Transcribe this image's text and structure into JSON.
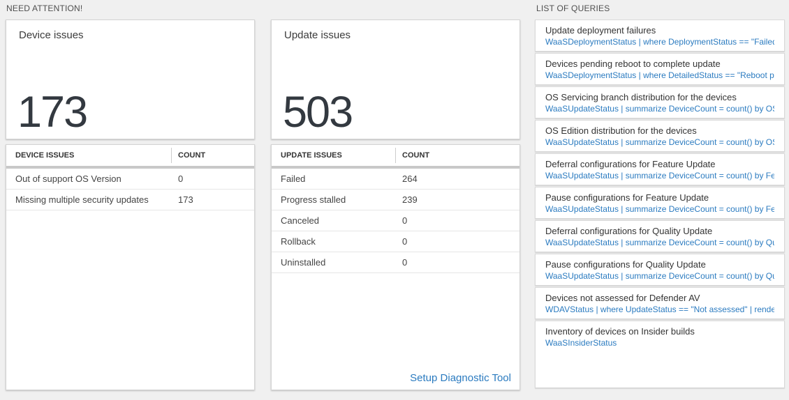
{
  "sections": {
    "need_attention": "NEED ATTENTION!",
    "list_of_queries": "LIST OF QUERIES"
  },
  "colors": {
    "link_blue": "#2b7bc0",
    "big_number": "#333940",
    "page_bg": "#f0f0f0"
  },
  "device_card": {
    "title": "Device issues",
    "big_number": "173",
    "table": {
      "header_label": "DEVICE ISSUES",
      "header_count": "COUNT",
      "rows": [
        {
          "label": "Out of support OS Version",
          "count": "0"
        },
        {
          "label": "Missing multiple security updates",
          "count": "173"
        }
      ]
    }
  },
  "update_card": {
    "title": "Update issues",
    "big_number": "503",
    "table": {
      "header_label": "UPDATE ISSUES",
      "header_count": "COUNT",
      "rows": [
        {
          "label": "Failed",
          "count": "264"
        },
        {
          "label": "Progress stalled",
          "count": "239"
        },
        {
          "label": "Canceled",
          "count": "0"
        },
        {
          "label": "Rollback",
          "count": "0"
        },
        {
          "label": "Uninstalled",
          "count": "0"
        }
      ]
    },
    "link_label": "Setup Diagnostic Tool"
  },
  "queries": [
    {
      "title": "Update deployment failures",
      "query": "WaaSDeploymentStatus | where DeploymentStatus == \"Failed\" |..."
    },
    {
      "title": "Devices pending reboot to complete update",
      "query": "WaaSDeploymentStatus | where DetailedStatus == \"Reboot pend..."
    },
    {
      "title": "OS Servicing branch distribution for the devices",
      "query": "WaaSUpdateStatus | summarize DeviceCount = count() by OSSer..."
    },
    {
      "title": "OS Edition distribution for the devices",
      "query": "WaaSUpdateStatus | summarize DeviceCount = count() by OSEdit..."
    },
    {
      "title": "Deferral configurations for Feature Update",
      "query": "WaaSUpdateStatus | summarize DeviceCount = count() by Featur..."
    },
    {
      "title": "Pause configurations for Feature Update",
      "query": "WaaSUpdateStatus | summarize DeviceCount = count() by Featur..."
    },
    {
      "title": "Deferral configurations for Quality Update",
      "query": "WaaSUpdateStatus | summarize DeviceCount = count() by Qualit..."
    },
    {
      "title": "Pause configurations for Quality Update",
      "query": "WaaSUpdateStatus | summarize DeviceCount = count() by Qualit..."
    },
    {
      "title": "Devices not assessed for Defender AV",
      "query": "WDAVStatus | where UpdateStatus == \"Not assessed\" | render ta..."
    },
    {
      "title": "Inventory of devices on Insider builds",
      "query": "WaaSInsiderStatus"
    }
  ]
}
